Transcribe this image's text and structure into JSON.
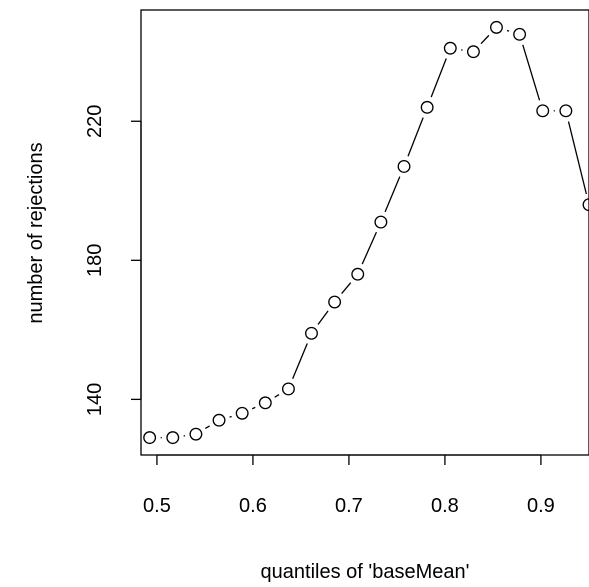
{
  "chart_data": {
    "type": "line",
    "title": "",
    "xlabel": "quantiles of 'baseMean'",
    "ylabel": "number of rejections",
    "x": [
      0.4924,
      0.5165,
      0.5406,
      0.5647,
      0.5888,
      0.6129,
      0.637,
      0.661,
      0.6851,
      0.7092,
      0.7333,
      0.7574,
      0.7815,
      0.8056,
      0.8297,
      0.8537,
      0.8778,
      0.9019,
      0.926,
      0.9501
    ],
    "series": [
      {
        "values": [
          129,
          129,
          130,
          134,
          136,
          139,
          143,
          159,
          168,
          176,
          191,
          207,
          224,
          241,
          240,
          247,
          245,
          223,
          223,
          196
        ]
      }
    ],
    "xlim": [
      0.4834,
      0.9501
    ],
    "ylim": [
      124,
      252
    ],
    "xticks": [
      0.5,
      0.6,
      0.7,
      0.8,
      0.9
    ],
    "xtick_labels": [
      "0.5",
      "0.6",
      "0.7",
      "0.8",
      "0.9"
    ],
    "yticks": [
      140,
      180,
      220
    ],
    "ytick_labels": [
      "140",
      "180",
      "220"
    ],
    "grid": false,
    "legend": "none"
  }
}
